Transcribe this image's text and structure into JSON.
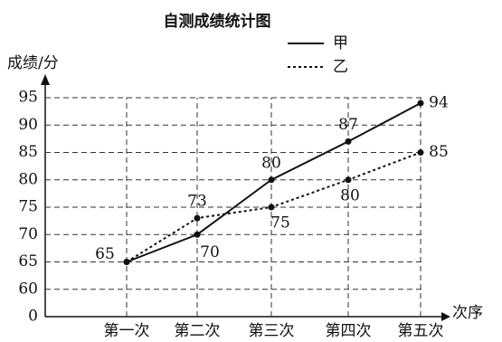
{
  "chart_data": {
    "type": "line",
    "title": "自测成绩统计图",
    "y_label": "成绩/分",
    "x_label": "次序",
    "categories": [
      "第一次",
      "第二次",
      "第三次",
      "第四次",
      "第五次"
    ],
    "series": [
      {
        "name": "甲",
        "color": "#111111",
        "dash": "solid",
        "values": [
          65,
          70,
          80,
          87,
          94
        ],
        "value_labels": [
          "65",
          "70",
          "80",
          "87",
          "94"
        ]
      },
      {
        "name": "乙",
        "color": "#111111",
        "dash": "dotted",
        "values": [
          65,
          73,
          75,
          80,
          85
        ],
        "value_labels": [
          null,
          "73",
          "75",
          "80",
          "85"
        ]
      }
    ],
    "ylim": [
      0,
      95
    ],
    "yticks": [
      0,
      60,
      65,
      70,
      75,
      80,
      85,
      90,
      95
    ],
    "grid": true,
    "legend": "top-right"
  }
}
